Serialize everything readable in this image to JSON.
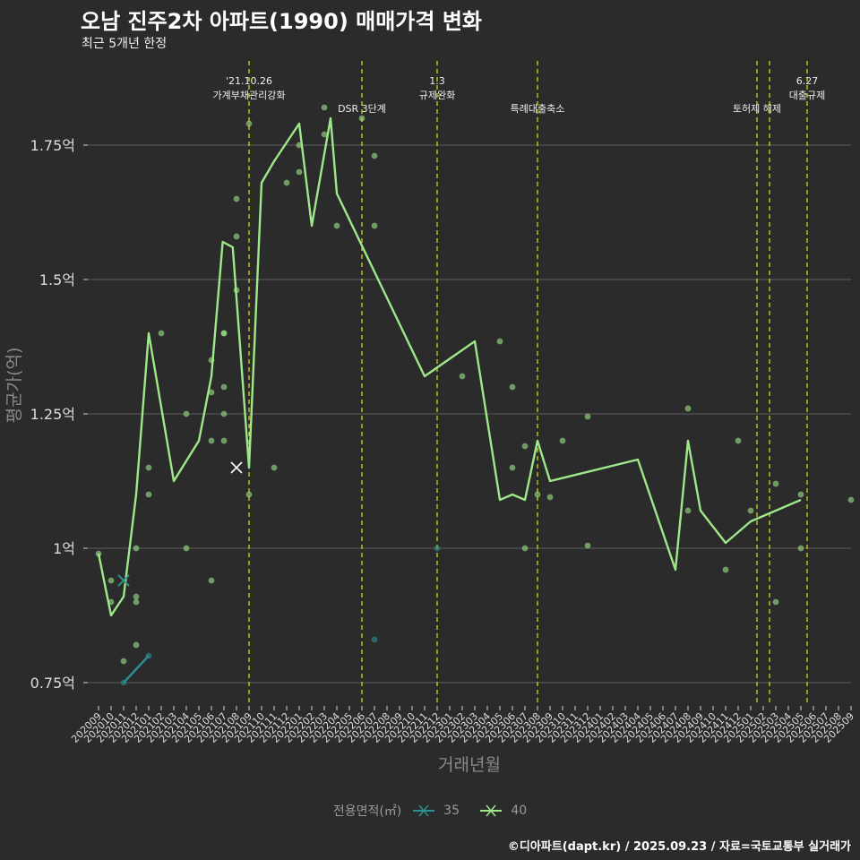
{
  "title": "오남 진주2차 아파트(1990) 매매가격 변화",
  "subtitle": "최근 5개년 한정",
  "caption": "©디아파트(dapt.kr) / 2025.09.23 / 자료=국토교통부 실거래가",
  "legend": {
    "title": "전용면적(㎡)",
    "items": [
      "35",
      "40"
    ]
  },
  "colors": {
    "background": "#2b2b2b",
    "grid": "#5e5e5e",
    "series35": "#2c8f92",
    "series40": "#9ee88a",
    "event": "#d4d416"
  },
  "chart_data": {
    "type": "line",
    "xlabel": "거래년월",
    "ylabel": "평균가(억)",
    "ylim": [
      0.7,
      1.95
    ],
    "yticks": [
      {
        "value": 0.75,
        "label": "0.75억"
      },
      {
        "value": 1.0,
        "label": "1억"
      },
      {
        "value": 1.25,
        "label": "1.25억"
      },
      {
        "value": 1.5,
        "label": "1.5억"
      },
      {
        "value": 1.75,
        "label": "1.75억"
      }
    ],
    "months": [
      "202009",
      "202010",
      "202011",
      "202012",
      "202101",
      "202102",
      "202103",
      "202104",
      "202105",
      "202106",
      "202107",
      "202108",
      "202109",
      "202110",
      "202111",
      "202112",
      "202201",
      "202202",
      "202203",
      "202204",
      "202205",
      "202206",
      "202207",
      "202208",
      "202209",
      "202210",
      "202211",
      "202212",
      "202301",
      "202302",
      "202303",
      "202304",
      "202305",
      "202306",
      "202307",
      "202308",
      "202309",
      "202310",
      "202311",
      "202312",
      "202401",
      "202402",
      "202403",
      "202404",
      "202405",
      "202406",
      "202407",
      "202408",
      "202409",
      "202410",
      "202411",
      "202412",
      "202501",
      "202502",
      "202503",
      "202504",
      "202505",
      "202506",
      "202507",
      "202508",
      "202509"
    ],
    "series": [
      {
        "name": "35",
        "points": [
          [
            2,
            0.75
          ],
          [
            4,
            0.8
          ]
        ],
        "scatter": [
          [
            2,
            0.75
          ],
          [
            4,
            0.8
          ],
          [
            22,
            0.83
          ],
          [
            27,
            1.0
          ]
        ]
      },
      {
        "name": "40",
        "points": [
          [
            0,
            0.99
          ],
          [
            1.0,
            0.875
          ],
          [
            2,
            0.91
          ],
          [
            3,
            1.1
          ],
          [
            4,
            1.4
          ],
          [
            6,
            1.125
          ],
          [
            8,
            1.2
          ],
          [
            9,
            1.32
          ],
          [
            9.9,
            1.57
          ],
          [
            10.7,
            1.56
          ],
          [
            12,
            1.15
          ],
          [
            13,
            1.68
          ],
          [
            14,
            1.72
          ],
          [
            16,
            1.79
          ],
          [
            17,
            1.6
          ],
          [
            18.5,
            1.8
          ],
          [
            19,
            1.66
          ],
          [
            26,
            1.32
          ],
          [
            30,
            1.385
          ],
          [
            32,
            1.09
          ],
          [
            33,
            1.1
          ],
          [
            34,
            1.09
          ],
          [
            35,
            1.2
          ],
          [
            36,
            1.125
          ],
          [
            43,
            1.165
          ],
          [
            46,
            0.96
          ],
          [
            47,
            1.2
          ],
          [
            48,
            1.07
          ],
          [
            50,
            1.01
          ],
          [
            52,
            1.05
          ],
          [
            56,
            1.09
          ]
        ],
        "scatter": [
          [
            0,
            0.99
          ],
          [
            1,
            0.94
          ],
          [
            1,
            0.9
          ],
          [
            2,
            0.79
          ],
          [
            3,
            0.82
          ],
          [
            3,
            0.91
          ],
          [
            3,
            0.9
          ],
          [
            3,
            1.0
          ],
          [
            4,
            1.1
          ],
          [
            4,
            1.15
          ],
          [
            5,
            1.4
          ],
          [
            7,
            1.25
          ],
          [
            7,
            1.0
          ],
          [
            9,
            0.94
          ],
          [
            9,
            1.35
          ],
          [
            9,
            1.29
          ],
          [
            9,
            1.2
          ],
          [
            10,
            1.4
          ],
          [
            10,
            1.3
          ],
          [
            10,
            1.25
          ],
          [
            10,
            1.2
          ],
          [
            10,
            1.4
          ],
          [
            11,
            1.65
          ],
          [
            11,
            1.58
          ],
          [
            11,
            1.48
          ],
          [
            12,
            1.79
          ],
          [
            12,
            1.1
          ],
          [
            14,
            1.15
          ],
          [
            15,
            1.68
          ],
          [
            16,
            1.75
          ],
          [
            16,
            1.7
          ],
          [
            18,
            1.82
          ],
          [
            18,
            1.77
          ],
          [
            19,
            1.6
          ],
          [
            21,
            1.8
          ],
          [
            22,
            1.73
          ],
          [
            22,
            1.6
          ],
          [
            29,
            1.32
          ],
          [
            32,
            1.385
          ],
          [
            33,
            1.3
          ],
          [
            33,
            1.15
          ],
          [
            34,
            1.19
          ],
          [
            34,
            1.0
          ],
          [
            35,
            1.1
          ],
          [
            36,
            1.095
          ],
          [
            37,
            1.2
          ],
          [
            39,
            1.245
          ],
          [
            39,
            1.005
          ],
          [
            47,
            1.26
          ],
          [
            47,
            1.07
          ],
          [
            50,
            0.96
          ],
          [
            51,
            1.2
          ],
          [
            52,
            1.07
          ],
          [
            54,
            1.12
          ],
          [
            54,
            0.9
          ],
          [
            56,
            1.1
          ],
          [
            56,
            1.0
          ],
          [
            60,
            1.09
          ]
        ]
      }
    ],
    "markers": [
      {
        "series": "40",
        "x": 2,
        "y": 0.94
      },
      {
        "series": "35",
        "x": 2,
        "y": 0.94
      },
      {
        "series": "none",
        "x": 11,
        "y": 1.15
      }
    ],
    "events": [
      {
        "x": 12,
        "lines": [
          "'21.10.26",
          "가계부채관리강화"
        ]
      },
      {
        "x": 21,
        "lines": [
          "DSR 3단계"
        ]
      },
      {
        "x": 27,
        "lines": [
          "1.3",
          "규제완화"
        ]
      },
      {
        "x": 35,
        "lines": [
          "특례대출축소"
        ]
      },
      {
        "x": 52.5,
        "lines": [
          "토허제 해제"
        ]
      },
      {
        "x": 53.5,
        "lines": []
      },
      {
        "x": 56.5,
        "lines": [
          "6.27",
          "대출규제"
        ]
      }
    ]
  }
}
